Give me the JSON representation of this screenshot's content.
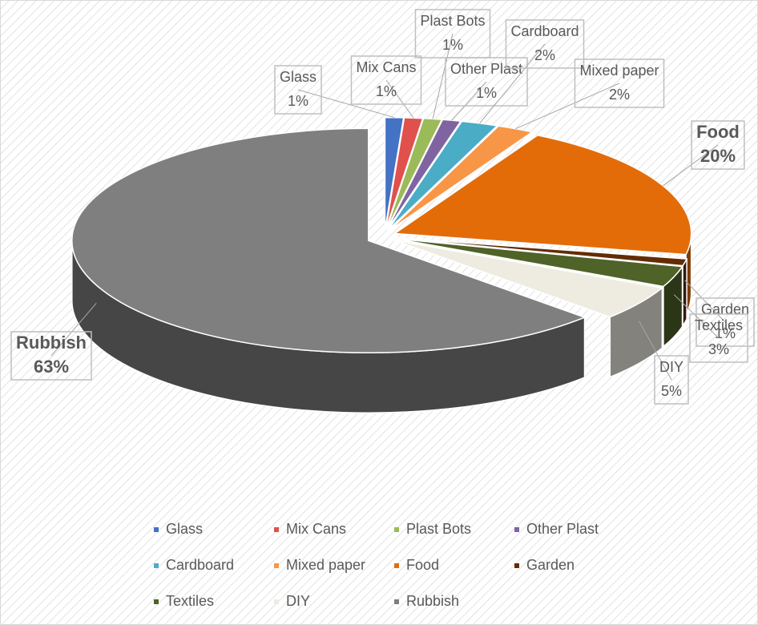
{
  "chart_data": {
    "type": "pie",
    "categories": [
      "Glass",
      "Mix Cans",
      "Plast Bots",
      "Other Plast",
      "Cardboard",
      "Mixed paper",
      "Food",
      "Garden",
      "Textiles",
      "DIY",
      "Rubbish"
    ],
    "values": [
      1,
      1,
      1,
      1,
      2,
      2,
      20,
      1,
      3,
      5,
      63
    ],
    "value_labels": [
      "1%",
      "1%",
      "1%",
      "1%",
      "2%",
      "2%",
      "20%",
      "1%",
      "3%",
      "5%",
      "63%"
    ],
    "colors": [
      "#4472c4",
      "#e0504d",
      "#9bbb59",
      "#8064a2",
      "#4bacc6",
      "#f79646",
      "#e36c09",
      "#632c04",
      "#4f6228",
      "#eeece1",
      "#7f7f7f"
    ],
    "legend": "bottom"
  }
}
